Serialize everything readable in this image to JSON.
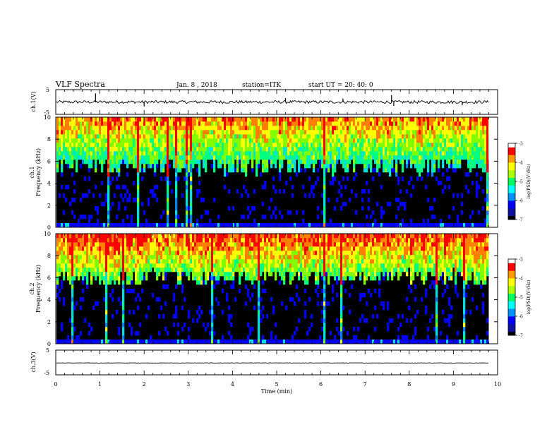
{
  "header": {
    "title": "VLF Spectra",
    "date": "Jan. 8 , 2018",
    "station": "station=ITK",
    "start": "start UT = 20: 40: 0"
  },
  "chart_data": [
    {
      "type": "line",
      "name": "ch1-waveform",
      "ylabel": "ch.1(V)",
      "ylim": [
        -5,
        5
      ],
      "yticks": [
        "5",
        "-5"
      ],
      "xlim": [
        0,
        10
      ],
      "data_end_x": 9.8,
      "baseline": 0,
      "noise_amplitude": 0.6,
      "spikes": [
        {
          "x": 0.9,
          "y": 3.5
        },
        {
          "x": 2.0,
          "y": -1.8
        },
        {
          "x": 5.2,
          "y": 1.6
        },
        {
          "x": 6.5,
          "y": 1.4
        },
        {
          "x": 7.6,
          "y": 2.8
        },
        {
          "x": 7.65,
          "y": -1.6
        },
        {
          "x": 9.2,
          "y": -1.3
        }
      ]
    },
    {
      "type": "heatmap",
      "name": "ch1-spectrogram",
      "ylabel": "ch.1 Frequency (kHz)",
      "ylim": [
        0,
        10
      ],
      "yticks": [
        "0",
        "2",
        "4",
        "6",
        "8",
        "10"
      ],
      "xlim": [
        0,
        10
      ],
      "data_end_x": 9.8,
      "quiet_band_top_khz": 5.5,
      "colorbar": {
        "label": "log(PSD)(V²/Hz)",
        "range": [
          -7,
          -3
        ],
        "ticks": [
          "-3",
          "-4",
          "-5",
          "-6",
          "-7"
        ]
      }
    },
    {
      "type": "heatmap",
      "name": "ch2-spectrogram",
      "ylabel": "ch.2 Frequency (kHz)",
      "ylim": [
        0,
        10
      ],
      "yticks": [
        "0",
        "2",
        "4",
        "6",
        "8",
        "10"
      ],
      "xlim": [
        0,
        10
      ],
      "data_end_x": 9.8,
      "quiet_band_top_khz": 6.0,
      "colorbar": {
        "label": "log(PSD)(V²/Hz)",
        "range": [
          -7,
          -3
        ],
        "ticks": [
          "-3",
          "-4",
          "-5",
          "-6",
          "-7"
        ]
      }
    },
    {
      "type": "line",
      "name": "ch3-waveform",
      "ylabel": "ch.3(V)",
      "ylim": [
        -5,
        5
      ],
      "yticks": [
        "5",
        "-5"
      ],
      "xlim": [
        0,
        10
      ],
      "data_end_x": 9.8,
      "baseline": -0.2,
      "noise_amplitude": 0.05
    }
  ],
  "xaxis": {
    "label": "Time (min)",
    "ticks": [
      "0",
      "1",
      "2",
      "3",
      "4",
      "5",
      "6",
      "7",
      "8",
      "9",
      "10"
    ]
  },
  "colormap": [
    "#000000",
    "#0a0a6e",
    "#0000ff",
    "#0080ff",
    "#00e0e0",
    "#00ff80",
    "#80ff00",
    "#ffff00",
    "#ff8000",
    "#ff0000",
    "#ffffff"
  ]
}
